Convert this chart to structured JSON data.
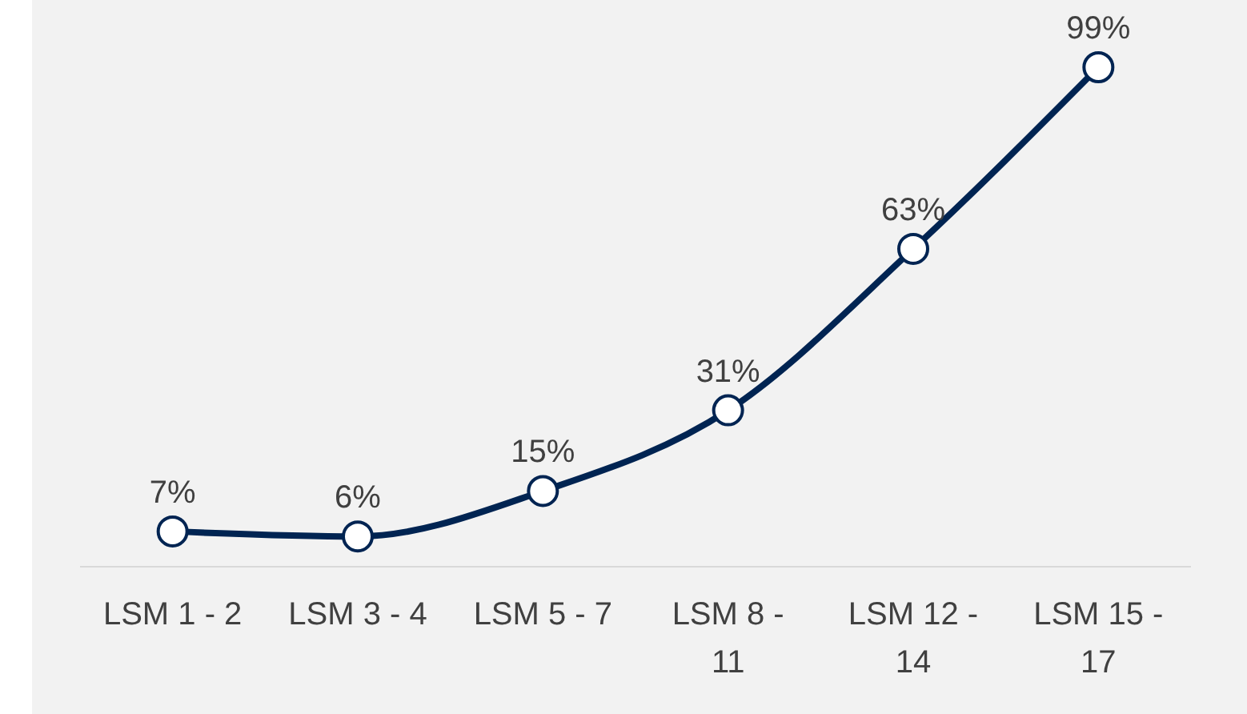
{
  "chart_data": {
    "type": "line",
    "categories": [
      "LSM 1 - 2",
      "LSM 3 - 4",
      "LSM 5 - 7",
      "LSM 8 - 11",
      "LSM 12 - 14",
      "LSM 15 - 17"
    ],
    "series": [
      {
        "color": "#002452",
        "values": [
          7,
          6,
          15,
          31,
          63,
          99
        ],
        "value_labels": [
          "7%",
          "6%",
          "15%",
          "31%",
          "63%",
          "99%"
        ]
      }
    ],
    "marker": "circle",
    "line_style": "solid"
  }
}
